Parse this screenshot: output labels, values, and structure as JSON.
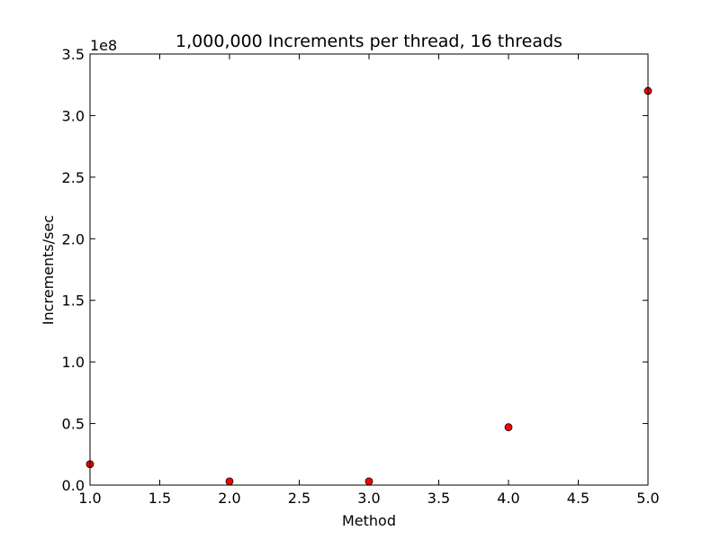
{
  "chart_data": {
    "type": "scatter",
    "title": "1,000,000 Increments per thread, 16 threads",
    "xlabel": "Method",
    "ylabel": "Increments/sec",
    "y_offset_label": "1e8",
    "xlim": [
      1.0,
      5.0
    ],
    "ylim": [
      0.0,
      3.5
    ],
    "x_ticks": [
      "1.0",
      "1.5",
      "2.0",
      "2.5",
      "3.0",
      "3.5",
      "4.0",
      "4.5",
      "5.0"
    ],
    "y_ticks": [
      "0.0",
      "0.5",
      "1.0",
      "1.5",
      "2.0",
      "2.5",
      "3.0",
      "3.5"
    ],
    "x_tick_values": [
      1.0,
      1.5,
      2.0,
      2.5,
      3.0,
      3.5,
      4.0,
      4.5,
      5.0
    ],
    "y_tick_values": [
      0.0,
      0.5,
      1.0,
      1.5,
      2.0,
      2.5,
      3.0,
      3.5
    ],
    "grid": false,
    "legend": "none",
    "marker_color": "#ff0000",
    "marker_edge_color": "#000000",
    "series": [
      {
        "points": [
          {
            "x": 1.0,
            "y": 0.17
          },
          {
            "x": 2.0,
            "y": 0.03
          },
          {
            "x": 3.0,
            "y": 0.03
          },
          {
            "x": 4.0,
            "y": 0.47
          },
          {
            "x": 5.0,
            "y": 3.2
          }
        ]
      }
    ]
  }
}
